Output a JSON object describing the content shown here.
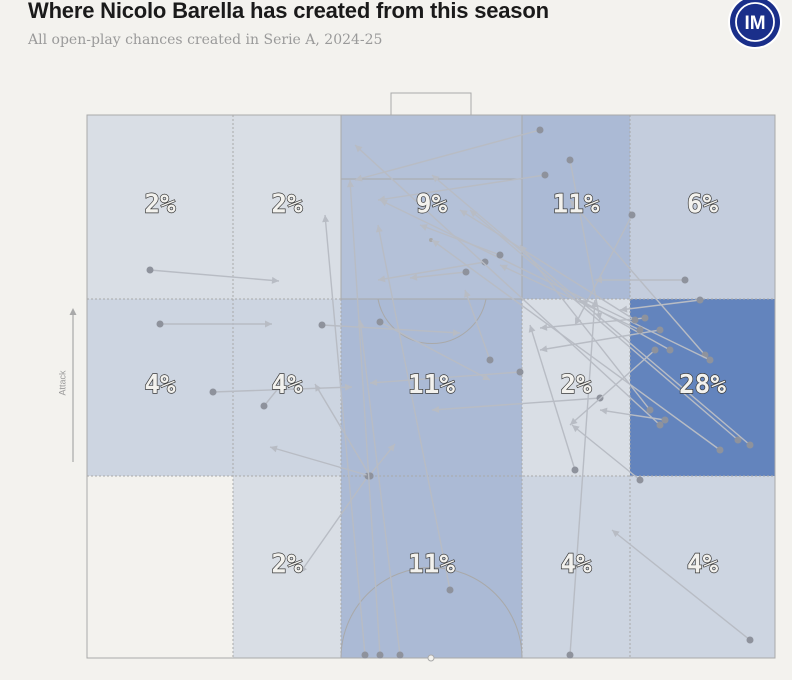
{
  "title": "Where Nicolo Barella has created from this season",
  "subtitle": "All open-play chances created in Serie A, 2024-25",
  "attack_label": "Attack",
  "logo": {
    "name": "inter-milan-crest",
    "text": "IM",
    "color": "#1a2f8a"
  },
  "colors": {
    "heat": "#5b7db9",
    "arrow": "#b8bcc4",
    "dot": "#8e929c",
    "line": "#a9a9a9",
    "background": "#f3f2ee"
  },
  "chart_data": {
    "type": "heatmap",
    "title": "Where Nicolo Barella has created from this season",
    "subtitle": "All open-play chances created in Serie A, 2024-25",
    "columns": 5,
    "rows": 3,
    "zones": [
      {
        "id": "zone-r1c1",
        "row": 1,
        "col": 1,
        "value": 2,
        "label": "2%"
      },
      {
        "id": "zone-r1c2",
        "row": 1,
        "col": 2,
        "value": 2,
        "label": "2%"
      },
      {
        "id": "zone-r1c3",
        "row": 1,
        "col": 3,
        "value": 9,
        "label": "9%"
      },
      {
        "id": "zone-r1c4",
        "row": 1,
        "col": 4,
        "value": 11,
        "label": "11%"
      },
      {
        "id": "zone-r1c5",
        "row": 1,
        "col": 5,
        "value": 6,
        "label": "6%"
      },
      {
        "id": "zone-r2c1",
        "row": 2,
        "col": 1,
        "value": 4,
        "label": "4%"
      },
      {
        "id": "zone-r2c2",
        "row": 2,
        "col": 2,
        "value": 4,
        "label": "4%"
      },
      {
        "id": "zone-r2c3",
        "row": 2,
        "col": 3,
        "value": 11,
        "label": "11%"
      },
      {
        "id": "zone-r2c4",
        "row": 2,
        "col": 4,
        "value": 2,
        "label": "2%"
      },
      {
        "id": "zone-r2c5",
        "row": 2,
        "col": 5,
        "value": 28,
        "label": "28%"
      },
      {
        "id": "zone-r3c1",
        "row": 3,
        "col": 1,
        "value": 0,
        "label": ""
      },
      {
        "id": "zone-r3c2",
        "row": 3,
        "col": 2,
        "value": 2,
        "label": "2%"
      },
      {
        "id": "zone-r3c3",
        "row": 3,
        "col": 3,
        "value": 11,
        "label": "11%"
      },
      {
        "id": "zone-r3c4",
        "row": 3,
        "col": 4,
        "value": 4,
        "label": "4%"
      },
      {
        "id": "zone-r3c5",
        "row": 3,
        "col": 5,
        "value": 4,
        "label": "4%"
      }
    ],
    "passes": [
      [
        150,
        270,
        279,
        281
      ],
      [
        160,
        324,
        272,
        324
      ],
      [
        213,
        392,
        352,
        387
      ],
      [
        264,
        406,
        285,
        380
      ],
      [
        322,
        325,
        460,
        333
      ],
      [
        380,
        322,
        490,
        380
      ],
      [
        369,
        476,
        395,
        444
      ],
      [
        368,
        476,
        300,
        573
      ],
      [
        370,
        476,
        270,
        447
      ],
      [
        370,
        476,
        315,
        384
      ],
      [
        365,
        655,
        325,
        215
      ],
      [
        380,
        655,
        350,
        180
      ],
      [
        400,
        655,
        360,
        320
      ],
      [
        450,
        590,
        378,
        225
      ],
      [
        570,
        655,
        595,
        300
      ],
      [
        575,
        470,
        530,
        325
      ],
      [
        540,
        130,
        355,
        180
      ],
      [
        545,
        175,
        378,
        200
      ],
      [
        570,
        160,
        600,
        320
      ],
      [
        490,
        360,
        465,
        290
      ],
      [
        466,
        272,
        410,
        278
      ],
      [
        485,
        262,
        378,
        280
      ],
      [
        520,
        372,
        370,
        383
      ],
      [
        600,
        398,
        432,
        410
      ],
      [
        632,
        215,
        575,
        325
      ],
      [
        640,
        480,
        572,
        425
      ],
      [
        750,
        640,
        612,
        530
      ],
      [
        645,
        318,
        540,
        328
      ],
      [
        660,
        330,
        540,
        350
      ],
      [
        670,
        350,
        580,
        300
      ],
      [
        700,
        300,
        620,
        310
      ],
      [
        705,
        355,
        570,
        200
      ],
      [
        710,
        360,
        380,
        200
      ],
      [
        720,
        450,
        432,
        240
      ],
      [
        738,
        440,
        470,
        210
      ],
      [
        750,
        445,
        432,
        175
      ],
      [
        660,
        425,
        355,
        145
      ],
      [
        650,
        410,
        520,
        245
      ],
      [
        665,
        420,
        600,
        410
      ],
      [
        635,
        320,
        460,
        210
      ],
      [
        655,
        350,
        570,
        425
      ],
      [
        640,
        330,
        500,
        265
      ],
      [
        685,
        280,
        595,
        280
      ],
      [
        500,
        255,
        420,
        225
      ]
    ]
  }
}
